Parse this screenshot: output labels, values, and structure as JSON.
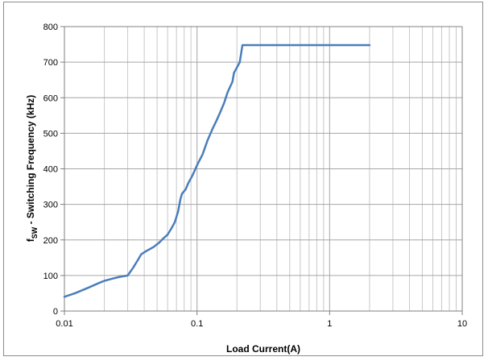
{
  "chart_data": {
    "type": "line",
    "title": "",
    "xlabel": "Load Current(A)",
    "ylabel_main": "f",
    "ylabel_sub": "SW",
    "ylabel_rest": " - Switching Frequency (kHz)",
    "xscale": "log",
    "xlim": [
      0.01,
      10
    ],
    "ylim": [
      0,
      800
    ],
    "x_ticks": [
      {
        "value": 0.01,
        "label": "0.01"
      },
      {
        "value": 0.1,
        "label": "0.1"
      },
      {
        "value": 1,
        "label": "1"
      },
      {
        "value": 10,
        "label": "10"
      }
    ],
    "y_ticks": [
      {
        "value": 0,
        "label": "0"
      },
      {
        "value": 100,
        "label": "100"
      },
      {
        "value": 200,
        "label": "200"
      },
      {
        "value": 300,
        "label": "300"
      },
      {
        "value": 400,
        "label": "400"
      },
      {
        "value": 500,
        "label": "500"
      },
      {
        "value": 600,
        "label": "600"
      },
      {
        "value": 700,
        "label": "700"
      },
      {
        "value": 800,
        "label": "800"
      }
    ],
    "grid": {
      "major_y": true,
      "major_x": true,
      "minor_x": true
    },
    "legend": "none",
    "series": [
      {
        "color": "#4a7ebb",
        "points": [
          [
            0.01,
            40
          ],
          [
            0.012,
            50
          ],
          [
            0.015,
            65
          ],
          [
            0.018,
            78
          ],
          [
            0.02,
            85
          ],
          [
            0.023,
            91
          ],
          [
            0.026,
            96
          ],
          [
            0.03,
            100
          ],
          [
            0.033,
            122
          ],
          [
            0.036,
            145
          ],
          [
            0.038,
            160
          ],
          [
            0.042,
            170
          ],
          [
            0.047,
            180
          ],
          [
            0.052,
            193
          ],
          [
            0.056,
            205
          ],
          [
            0.06,
            215
          ],
          [
            0.064,
            232
          ],
          [
            0.068,
            250
          ],
          [
            0.072,
            280
          ],
          [
            0.075,
            315
          ],
          [
            0.077,
            330
          ],
          [
            0.082,
            342
          ],
          [
            0.086,
            360
          ],
          [
            0.092,
            380
          ],
          [
            0.1,
            410
          ],
          [
            0.11,
            440
          ],
          [
            0.12,
            480
          ],
          [
            0.13,
            510
          ],
          [
            0.14,
            535
          ],
          [
            0.15,
            560
          ],
          [
            0.16,
            585
          ],
          [
            0.17,
            615
          ],
          [
            0.185,
            645
          ],
          [
            0.19,
            670
          ],
          [
            0.2,
            685
          ],
          [
            0.21,
            700
          ],
          [
            0.22,
            748
          ],
          [
            2.0,
            748
          ]
        ]
      }
    ]
  }
}
